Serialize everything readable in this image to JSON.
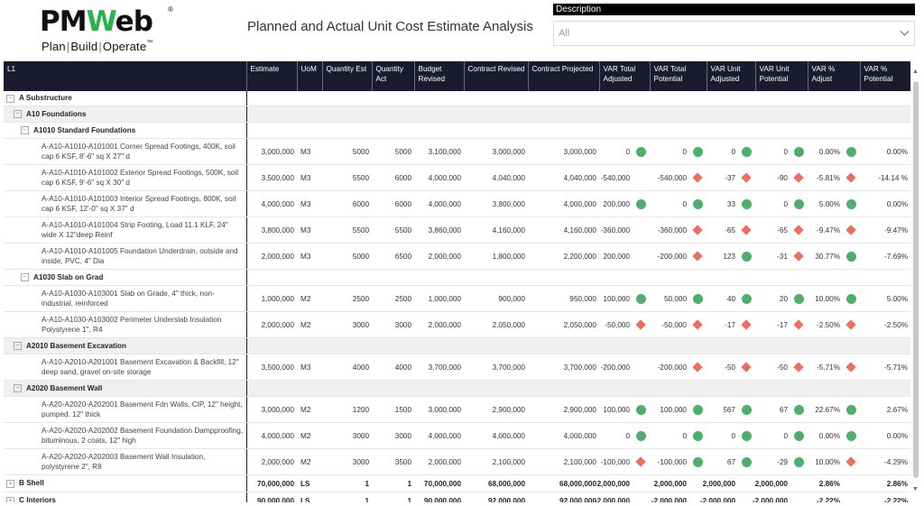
{
  "logo": {
    "part1": "PM",
    "part2": "W",
    "part3": "eb",
    "reg": "®",
    "tagline": [
      "Plan",
      "Build",
      "Operate"
    ],
    "tm": "™"
  },
  "title": "Planned and Actual Unit Cost Estimate Analysis",
  "slicer": {
    "label": "Description",
    "value": "All"
  },
  "columns": [
    "L1",
    "Estimate",
    "UoM",
    "Quantity Est",
    "Quantity Act",
    "Budget Revised",
    "Contract Revised",
    "Contract Projected",
    "VAR Total Adjusted",
    "VAR Total Potential",
    "VAR Unit Adjusted",
    "VAR Unit Potential",
    "VAR % Adjust",
    "VAR % Potential"
  ],
  "rows": [
    {
      "kind": "g1",
      "label": "A Substructure",
      "toggle": "−"
    },
    {
      "kind": "g2",
      "label": "A10 Foundations",
      "toggle": "−"
    },
    {
      "kind": "g3",
      "label": "A1010 Standard Foundations",
      "toggle": "−"
    },
    {
      "kind": "it",
      "label": "A-A10-A1010-A101001 Corner Spread Footings, 400K, soil cap 6 KSF, 8'-6\" sq X 27\" d",
      "estimate": "3,000,000",
      "uom": "M3",
      "qty_est": "5000",
      "qty_act": "5000",
      "budget": "3,100,000",
      "contract": "3,000,000",
      "projected": "3,000,000",
      "var_total_adj": {
        "v": "0",
        "ic": "dot"
      },
      "var_total_pot": {
        "v": "0",
        "ic": "dot"
      },
      "var_unit_adj": {
        "v": "0",
        "ic": "dot"
      },
      "var_unit_pot": {
        "v": "0",
        "ic": "dot"
      },
      "var_pct_adj": {
        "v": "0.00%",
        "ic": "dot"
      },
      "var_pct_pot": {
        "v": "0.00%",
        "ic": ""
      }
    },
    {
      "kind": "it",
      "label": "A-A10-A1010-A101002 Exterior Spread Footings, 500K, soil cap 6 KSF, 9'-6\" sq X 30\" d",
      "estimate": "3,500,000",
      "uom": "M3",
      "qty_est": "5500",
      "qty_act": "6000",
      "budget": "4,000,000",
      "contract": "4,040,000",
      "projected": "4,040,000",
      "var_total_adj": {
        "v": "-540,000",
        "ic": ""
      },
      "var_total_pot": {
        "v": "-540,000",
        "ic": "dia"
      },
      "var_unit_adj": {
        "v": "-37",
        "ic": "dia"
      },
      "var_unit_pot": {
        "v": "-90",
        "ic": "dia"
      },
      "var_pct_adj": {
        "v": "-5.81%",
        "ic": "dia"
      },
      "var_pct_pot": {
        "v": "-14.14 %",
        "ic": ""
      }
    },
    {
      "kind": "it",
      "label": "A-A10-A1010-A101003 Interior Spread Footings, 800K, soil cap 6 KSF, 12'-0\" sq X 37\" d",
      "estimate": "4,000,000",
      "uom": "M3",
      "qty_est": "6000",
      "qty_act": "6000",
      "budget": "4,000,000",
      "contract": "3,800,000",
      "projected": "4,000,000",
      "var_total_adj": {
        "v": "200,000",
        "ic": "dot"
      },
      "var_total_pot": {
        "v": "0",
        "ic": "dot"
      },
      "var_unit_adj": {
        "v": "33",
        "ic": "dot"
      },
      "var_unit_pot": {
        "v": "0",
        "ic": "dot"
      },
      "var_pct_adj": {
        "v": "5.00%",
        "ic": "dot"
      },
      "var_pct_pot": {
        "v": "0.00%",
        "ic": ""
      }
    },
    {
      "kind": "it",
      "label": "A-A10-A1010-A101004 Strip Footing, Load 11.1 KLF, 24\" wide X 12\"deep Reinf",
      "estimate": "3,800,000",
      "uom": "M3",
      "qty_est": "5500",
      "qty_act": "5500",
      "budget": "3,860,000",
      "contract": "4,160,000",
      "projected": "4,160,000",
      "var_total_adj": {
        "v": "-360,000",
        "ic": ""
      },
      "var_total_pot": {
        "v": "-360,000",
        "ic": "dia"
      },
      "var_unit_adj": {
        "v": "-65",
        "ic": "dia"
      },
      "var_unit_pot": {
        "v": "-65",
        "ic": "dia"
      },
      "var_pct_adj": {
        "v": "-9.47%",
        "ic": "dia"
      },
      "var_pct_pot": {
        "v": "-9.47%",
        "ic": ""
      }
    },
    {
      "kind": "it",
      "label": "A-A10-A1010-A101005 Foundation Underdrain, outside and inside, PVC, 4\" Dia",
      "estimate": "2,000,000",
      "uom": "M3",
      "qty_est": "5000",
      "qty_act": "6500",
      "budget": "2,000,000",
      "contract": "1,800,000",
      "projected": "2,200,000",
      "var_total_adj": {
        "v": "200,000",
        "ic": ""
      },
      "var_total_pot": {
        "v": "-200,000",
        "ic": "dia"
      },
      "var_unit_adj": {
        "v": "123",
        "ic": "dot"
      },
      "var_unit_pot": {
        "v": "-31",
        "ic": "dia"
      },
      "var_pct_adj": {
        "v": "30.77%",
        "ic": "dot"
      },
      "var_pct_pot": {
        "v": "-7.69%",
        "ic": ""
      }
    },
    {
      "kind": "g3",
      "label": "A1030 Slab on Grad",
      "toggle": "−"
    },
    {
      "kind": "it",
      "label": "A-A10-A1030-A103001 Slab on Grade, 4\" thick, non-industrial, reinforced",
      "estimate": "1,000,000",
      "uom": "M2",
      "qty_est": "2500",
      "qty_act": "2500",
      "budget": "1,000,000",
      "contract": "900,000",
      "projected": "950,000",
      "var_total_adj": {
        "v": "100,000",
        "ic": "dot"
      },
      "var_total_pot": {
        "v": "50,000",
        "ic": "dot"
      },
      "var_unit_adj": {
        "v": "40",
        "ic": "dot"
      },
      "var_unit_pot": {
        "v": "20",
        "ic": "dot"
      },
      "var_pct_adj": {
        "v": "10.00%",
        "ic": "dot"
      },
      "var_pct_pot": {
        "v": "5.00%",
        "ic": ""
      }
    },
    {
      "kind": "it",
      "label": "A-A10-A1030-A103002 Perimeter Underslab Insulation Polystyrene 1\", R4",
      "estimate": "2,000,000",
      "uom": "M2",
      "qty_est": "3000",
      "qty_act": "3000",
      "budget": "2,000,000",
      "contract": "2,050,000",
      "projected": "2,050,000",
      "var_total_adj": {
        "v": "-50,000",
        "ic": "dia"
      },
      "var_total_pot": {
        "v": "-50,000",
        "ic": "dia"
      },
      "var_unit_adj": {
        "v": "-17",
        "ic": "dia"
      },
      "var_unit_pot": {
        "v": "-17",
        "ic": "dia"
      },
      "var_pct_adj": {
        "v": "-2.50%",
        "ic": "dia"
      },
      "var_pct_pot": {
        "v": "-2.50%",
        "ic": ""
      }
    },
    {
      "kind": "g2",
      "label": "A2010 Basement Excavation",
      "toggle": "−"
    },
    {
      "kind": "it",
      "label": "A-A10-A2010-A201001 Basement Excavation & Backfill, 12\" deep sand, gravel on-site storage",
      "estimate": "3,500,000",
      "uom": "M3",
      "qty_est": "4000",
      "qty_act": "4000",
      "budget": "3,700,000",
      "contract": "3,700,000",
      "projected": "3,700,000",
      "var_total_adj": {
        "v": "-200,000",
        "ic": ""
      },
      "var_total_pot": {
        "v": "-200,000",
        "ic": "dia"
      },
      "var_unit_adj": {
        "v": "-50",
        "ic": "dia"
      },
      "var_unit_pot": {
        "v": "-50",
        "ic": "dia"
      },
      "var_pct_adj": {
        "v": "-5.71%",
        "ic": "dia"
      },
      "var_pct_pot": {
        "v": "-5.71%",
        "ic": ""
      }
    },
    {
      "kind": "g2",
      "label": "A2020 Basement Wall",
      "toggle": "−"
    },
    {
      "kind": "it",
      "label": "A-A20-A2020-A202001 Basement Fdn Walls, CIP, 12\" height, pumped. 12\" thick",
      "estimate": "3,000,000",
      "uom": "M2",
      "qty_est": "1200",
      "qty_act": "1500",
      "budget": "3,000,000",
      "contract": "2,900,000",
      "projected": "2,900,000",
      "var_total_adj": {
        "v": "100,000",
        "ic": "dot"
      },
      "var_total_pot": {
        "v": "100,000",
        "ic": "dot"
      },
      "var_unit_adj": {
        "v": "567",
        "ic": "dot"
      },
      "var_unit_pot": {
        "v": "67",
        "ic": "dot"
      },
      "var_pct_adj": {
        "v": "22.67%",
        "ic": "dot"
      },
      "var_pct_pot": {
        "v": "2.67%",
        "ic": ""
      }
    },
    {
      "kind": "it",
      "label": "A-A20-A2020-A202002 Basement Foundation Dampproofing, bituminous, 2 coats, 12\" high",
      "estimate": "4,000,000",
      "uom": "M2",
      "qty_est": "3000",
      "qty_act": "3000",
      "budget": "4,000,000",
      "contract": "4,000,000",
      "projected": "4,000,000",
      "var_total_adj": {
        "v": "0",
        "ic": "dot"
      },
      "var_total_pot": {
        "v": "0",
        "ic": "dot"
      },
      "var_unit_adj": {
        "v": "0",
        "ic": "dot"
      },
      "var_unit_pot": {
        "v": "0",
        "ic": "dot"
      },
      "var_pct_adj": {
        "v": "0.00%",
        "ic": "dot"
      },
      "var_pct_pot": {
        "v": "0.00%",
        "ic": ""
      }
    },
    {
      "kind": "it",
      "label": "A-A20-A2020-A202003 Basement Wall Insulation, polystyrene 2\", R8",
      "estimate": "2,000,000",
      "uom": "M2",
      "qty_est": "3000",
      "qty_act": "3500",
      "budget": "2,000,000",
      "contract": "2,100,000",
      "projected": "2,100,000",
      "var_total_adj": {
        "v": "-100,000",
        "ic": "dia"
      },
      "var_total_pot": {
        "v": "-100,000",
        "ic": "dot"
      },
      "var_unit_adj": {
        "v": "67",
        "ic": "dot"
      },
      "var_unit_pot": {
        "v": "-29",
        "ic": "dot"
      },
      "var_pct_adj": {
        "v": "10.00%",
        "ic": "dia"
      },
      "var_pct_pot": {
        "v": "-4.29%",
        "ic": ""
      }
    },
    {
      "kind": "sh",
      "label": "B Shell",
      "toggle": "+",
      "estimate": "70,000,000",
      "uom": "LS",
      "qty_est": "1",
      "qty_act": "1",
      "budget": "70,000,000",
      "contract": "68,000,000",
      "projected": "68,000,000",
      "var_total_adj": {
        "v": "2,000,000",
        "ic": ""
      },
      "var_total_pot": {
        "v": "2,000,000",
        "ic": ""
      },
      "var_unit_adj": {
        "v": "2,000,000",
        "ic": ""
      },
      "var_unit_pot": {
        "v": "2,000,000",
        "ic": ""
      },
      "var_pct_adj": {
        "v": "2.86%",
        "ic": ""
      },
      "var_pct_pot": {
        "v": "2.86%",
        "ic": ""
      }
    },
    {
      "kind": "sh",
      "label": "C Interiors",
      "toggle": "+",
      "estimate": "90,000,000",
      "uom": "LS",
      "qty_est": "1",
      "qty_act": "1",
      "budget": "90,000,000",
      "contract": "92,000,000",
      "projected": "92,000,000",
      "var_total_adj": {
        "v": "-2,000,000",
        "ic": ""
      },
      "var_total_pot": {
        "v": "-2,000,000",
        "ic": ""
      },
      "var_unit_adj": {
        "v": "-2,000,000",
        "ic": ""
      },
      "var_unit_pot": {
        "v": "-2,000,000",
        "ic": ""
      },
      "var_pct_adj": {
        "v": "-2.22%",
        "ic": ""
      },
      "var_pct_pot": {
        "v": "-2.22%",
        "ic": ""
      }
    }
  ],
  "icons": {
    "dot": "green-circle-icon",
    "dia": "red-diamond-icon",
    "dot_color": "#4caf6a",
    "dia_color": "#ee6d5c"
  }
}
